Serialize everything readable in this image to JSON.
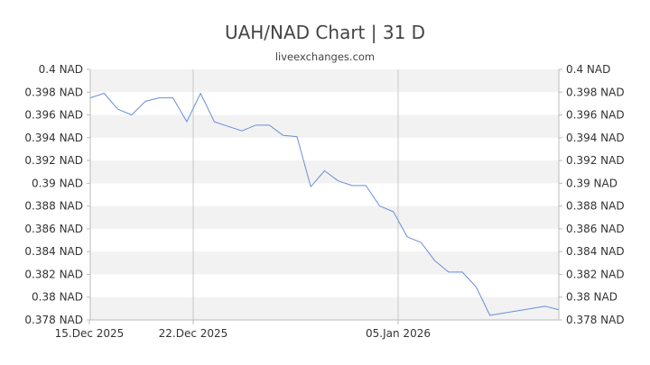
{
  "chart_data": {
    "type": "line",
    "title": "UAH/NAD Chart | 31 D",
    "subtitle": "liveexchanges.com",
    "x_tick_labels": [
      "15.Dec 2025",
      "22.Dec 2025",
      "05.Jan 2026"
    ],
    "y_ticks": [
      0.378,
      0.38,
      0.382,
      0.384,
      0.386,
      0.388,
      0.39,
      0.392,
      0.394,
      0.396,
      0.398,
      0.4
    ],
    "y_tick_labels": [
      "0.378 NAD",
      "0.38 NAD",
      "0.382 NAD",
      "0.384 NAD",
      "0.386 NAD",
      "0.388 NAD",
      "0.39 NAD",
      "0.392 NAD",
      "0.394 NAD",
      "0.396 NAD",
      "0.398 NAD",
      "0.4 NAD"
    ],
    "ylim": [
      0.378,
      0.4
    ],
    "grid": "alternating horizontal bands",
    "series": [
      {
        "color": "#6a8fd6",
        "values": [
          0.3975,
          0.3979,
          0.3965,
          0.396,
          0.3972,
          0.3975,
          0.3975,
          0.3954,
          0.3979,
          0.3954,
          0.395,
          0.3946,
          0.3951,
          0.3951,
          0.3942,
          0.3941,
          0.3897,
          0.3911,
          0.3902,
          0.3898,
          0.3898,
          0.388,
          0.3875,
          0.3853,
          0.3848,
          0.3832,
          0.3822,
          0.3822,
          0.3809,
          0.3784,
          0.3786,
          0.3788,
          0.379,
          0.3792,
          0.3789
        ]
      }
    ]
  }
}
